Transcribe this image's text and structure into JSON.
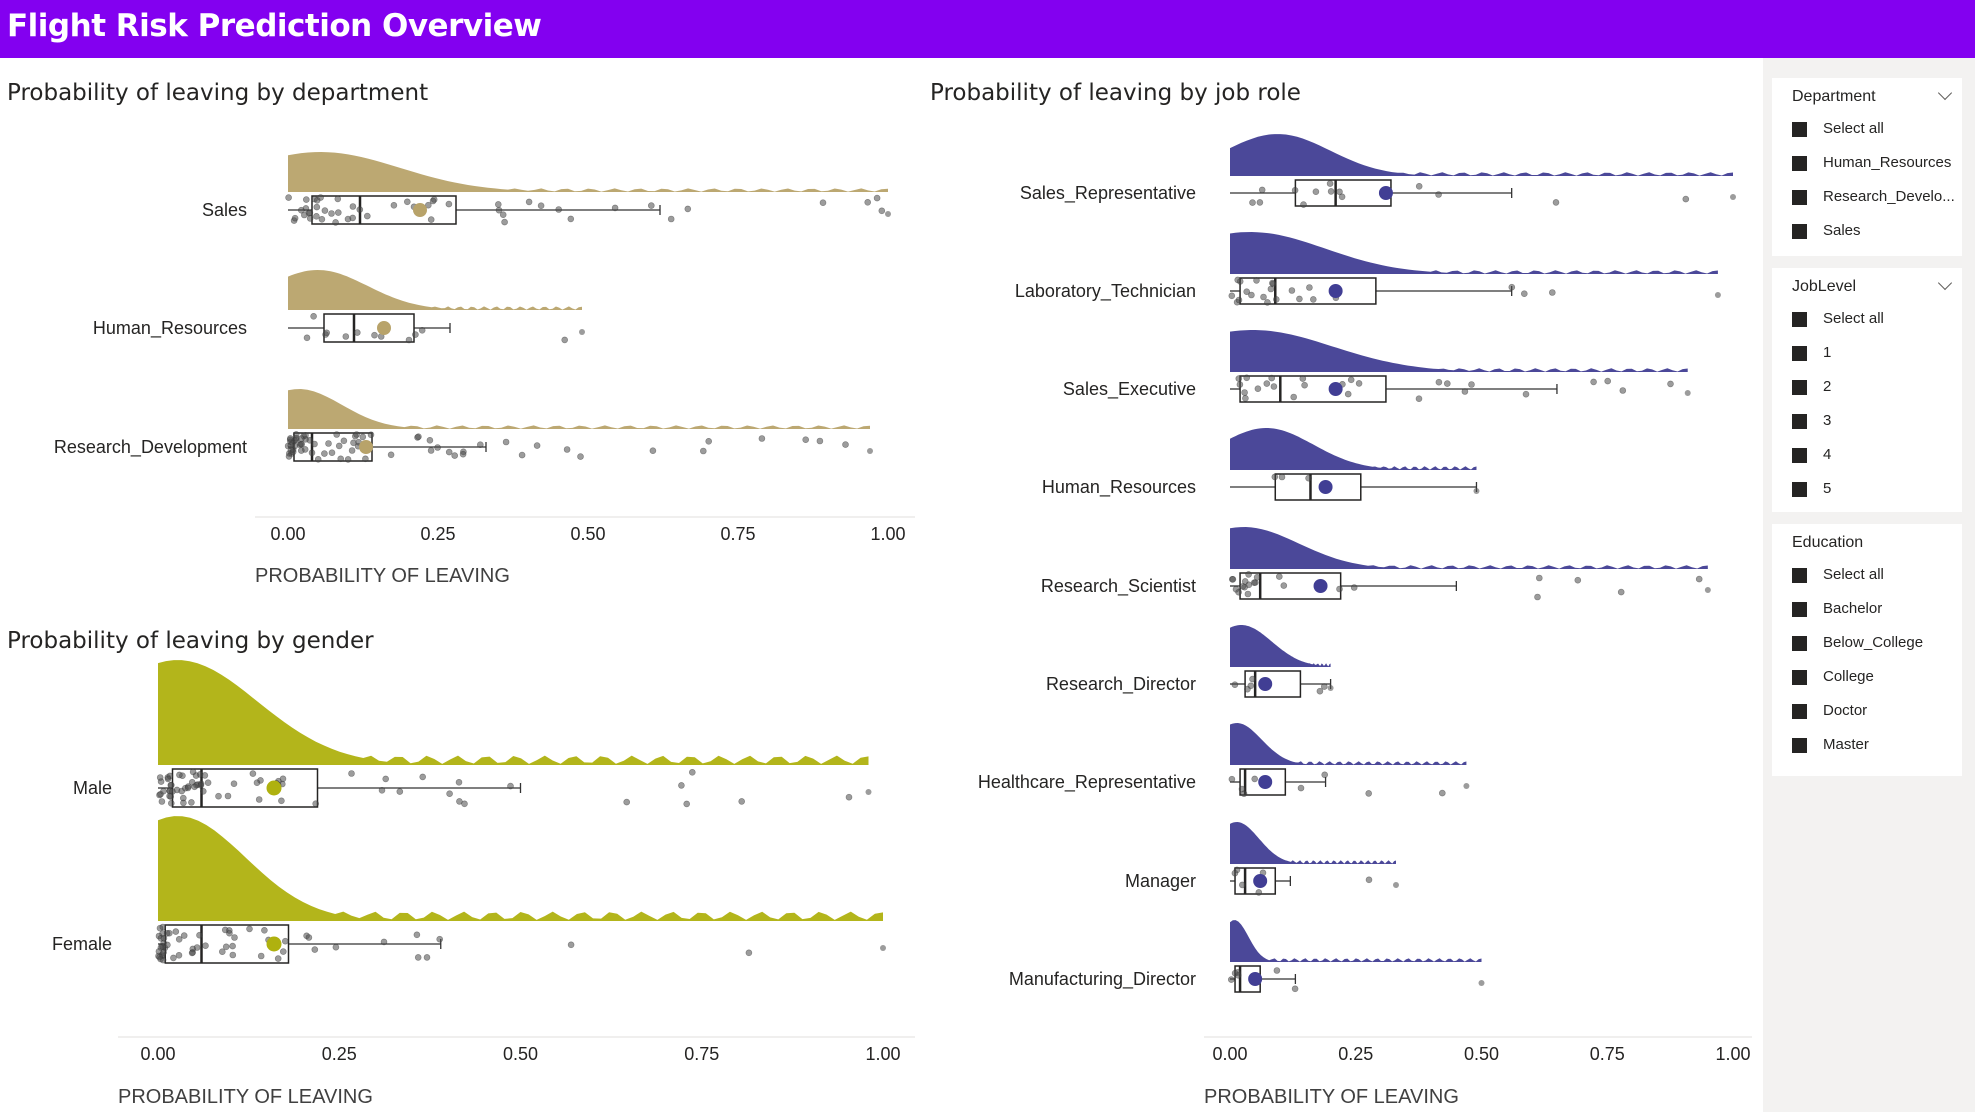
{
  "header": {
    "title": "Flight Risk Prediction Overview"
  },
  "panels": {
    "department": {
      "title": "Probability of leaving by department",
      "axis_title": "PROBABILITY OF LEAVING"
    },
    "gender": {
      "title": "Probability of leaving by gender",
      "axis_title": "PROBABILITY OF LEAVING"
    },
    "jobrole": {
      "title": "Probability of leaving by job role",
      "axis_title": "PROBABILITY OF LEAVING"
    }
  },
  "slicers": [
    {
      "title": "Department",
      "collapsible": true,
      "items": [
        "Select all",
        "Human_Resources",
        "Research_Develo...",
        "Sales"
      ]
    },
    {
      "title": "JobLevel",
      "collapsible": true,
      "items": [
        "Select all",
        "1",
        "2",
        "3",
        "4",
        "5"
      ]
    },
    {
      "title": "Education",
      "collapsible": false,
      "items": [
        "Select all",
        "Bachelor",
        "Below_College",
        "College",
        "Doctor",
        "Master"
      ]
    }
  ],
  "chart_data": [
    {
      "type": "raincloud",
      "title": "Probability of leaving by department",
      "xlabel": "PROBABILITY OF LEAVING",
      "xlim": [
        0,
        1
      ],
      "xticks": [
        "0.00",
        "0.25",
        "0.50",
        "0.75",
        "1.00"
      ],
      "color": "#b8a36a",
      "categories": [
        {
          "name": "Sales",
          "q1": 0.04,
          "median": 0.12,
          "q3": 0.28,
          "whisker_low": 0.0,
          "whisker_high": 0.62,
          "mean": 0.22,
          "max": 1.0
        },
        {
          "name": "Human_Resources",
          "q1": 0.06,
          "median": 0.11,
          "q3": 0.21,
          "whisker_low": 0.0,
          "whisker_high": 0.27,
          "mean": 0.16,
          "max": 0.49
        },
        {
          "name": "Research_Development",
          "q1": 0.01,
          "median": 0.04,
          "q3": 0.14,
          "whisker_low": 0.0,
          "whisker_high": 0.33,
          "mean": 0.13,
          "max": 0.97
        }
      ]
    },
    {
      "type": "raincloud",
      "title": "Probability of leaving by gender",
      "xlabel": "PROBABILITY OF LEAVING",
      "xlim": [
        0,
        1
      ],
      "xticks": [
        "0.00",
        "0.25",
        "0.50",
        "0.75",
        "1.00"
      ],
      "color": "#afb10f",
      "categories": [
        {
          "name": "Male",
          "q1": 0.02,
          "median": 0.06,
          "q3": 0.22,
          "whisker_low": 0.0,
          "whisker_high": 0.5,
          "mean": 0.16,
          "max": 0.98
        },
        {
          "name": "Female",
          "q1": 0.01,
          "median": 0.06,
          "q3": 0.18,
          "whisker_low": 0.0,
          "whisker_high": 0.39,
          "mean": 0.16,
          "max": 1.0
        }
      ]
    },
    {
      "type": "raincloud",
      "title": "Probability of leaving by job role",
      "xlabel": "PROBABILITY OF LEAVING",
      "xlim": [
        0,
        1
      ],
      "xticks": [
        "0.00",
        "0.25",
        "0.50",
        "0.75",
        "1.00"
      ],
      "color": "#413e94",
      "categories": [
        {
          "name": "Sales_Representative",
          "q1": 0.13,
          "median": 0.21,
          "q3": 0.32,
          "whisker_low": 0.0,
          "whisker_high": 0.56,
          "mean": 0.31,
          "max": 1.0
        },
        {
          "name": "Laboratory_Technician",
          "q1": 0.02,
          "median": 0.09,
          "q3": 0.29,
          "whisker_low": 0.0,
          "whisker_high": 0.56,
          "mean": 0.21,
          "max": 0.97
        },
        {
          "name": "Sales_Executive",
          "q1": 0.02,
          "median": 0.1,
          "q3": 0.31,
          "whisker_low": 0.0,
          "whisker_high": 0.65,
          "mean": 0.21,
          "max": 0.91
        },
        {
          "name": "Human_Resources",
          "q1": 0.09,
          "median": 0.16,
          "q3": 0.26,
          "whisker_low": 0.0,
          "whisker_high": 0.49,
          "mean": 0.19,
          "max": 0.49
        },
        {
          "name": "Research_Scientist",
          "q1": 0.02,
          "median": 0.06,
          "q3": 0.22,
          "whisker_low": 0.0,
          "whisker_high": 0.45,
          "mean": 0.18,
          "max": 0.95
        },
        {
          "name": "Research_Director",
          "q1": 0.03,
          "median": 0.05,
          "q3": 0.14,
          "whisker_low": 0.0,
          "whisker_high": 0.2,
          "mean": 0.07,
          "max": 0.2
        },
        {
          "name": "Healthcare_Representative",
          "q1": 0.02,
          "median": 0.03,
          "q3": 0.11,
          "whisker_low": 0.0,
          "whisker_high": 0.19,
          "mean": 0.07,
          "max": 0.47
        },
        {
          "name": "Manager",
          "q1": 0.01,
          "median": 0.03,
          "q3": 0.09,
          "whisker_low": 0.0,
          "whisker_high": 0.12,
          "mean": 0.06,
          "max": 0.33
        },
        {
          "name": "Manufacturing_Director",
          "q1": 0.01,
          "median": 0.02,
          "q3": 0.06,
          "whisker_low": 0.0,
          "whisker_high": 0.13,
          "mean": 0.05,
          "max": 0.5
        }
      ]
    }
  ]
}
